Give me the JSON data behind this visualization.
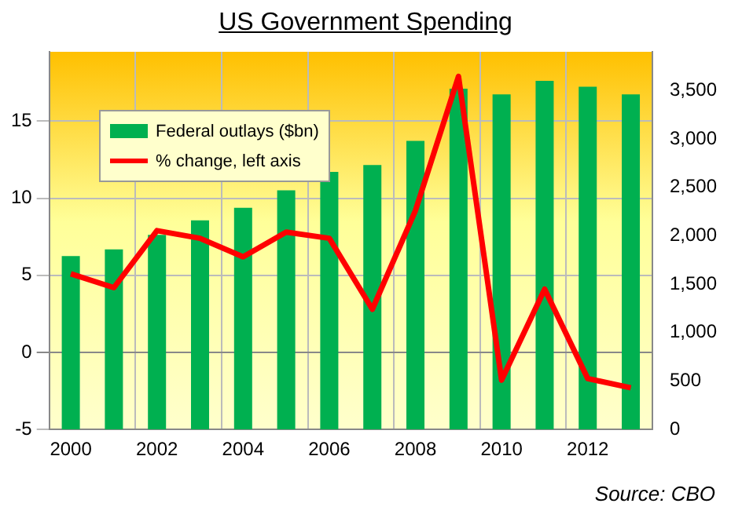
{
  "chart_data": {
    "type": "bar",
    "title": "US Government Spending",
    "categories": [
      "2000",
      null,
      "2002",
      null,
      "2004",
      null,
      "2006",
      null,
      "2008",
      null,
      "2010",
      null,
      "2012",
      null
    ],
    "series": [
      {
        "name": "Federal outlays ($bn)",
        "axis": "y2",
        "color": "#00b050",
        "values": [
          1790,
          1860,
          2010,
          2160,
          2290,
          2470,
          2660,
          2730,
          2980,
          3520,
          3460,
          3600,
          3540,
          3460
        ]
      },
      {
        "name": "% change, left axis",
        "type": "line",
        "axis": "y",
        "color": "#ff0000",
        "values": [
          5.1,
          4.2,
          7.9,
          7.4,
          6.2,
          7.8,
          7.4,
          2.8,
          9.2,
          17.9,
          -1.8,
          4.1,
          -1.7,
          -2.3
        ]
      }
    ],
    "ylim": [
      -5,
      19.5
    ],
    "yticks": [
      -5,
      0,
      5,
      10,
      15
    ],
    "y2lim": [
      0,
      3900
    ],
    "y2ticks": [
      0,
      {
        "value": 500,
        "label": "500"
      },
      {
        "value": 1000,
        "label": "1,000"
      },
      {
        "value": 1500,
        "label": "1,500"
      },
      {
        "value": 2000,
        "label": "2,000"
      },
      {
        "value": 2500,
        "label": "2,500"
      },
      {
        "value": 3000,
        "label": "3,000"
      },
      {
        "value": 3500,
        "label": "3,500"
      }
    ],
    "grid": true,
    "legend": "top left",
    "marker": "none",
    "line_style": "solid",
    "annotations": [
      "Source: CBO"
    ]
  }
}
